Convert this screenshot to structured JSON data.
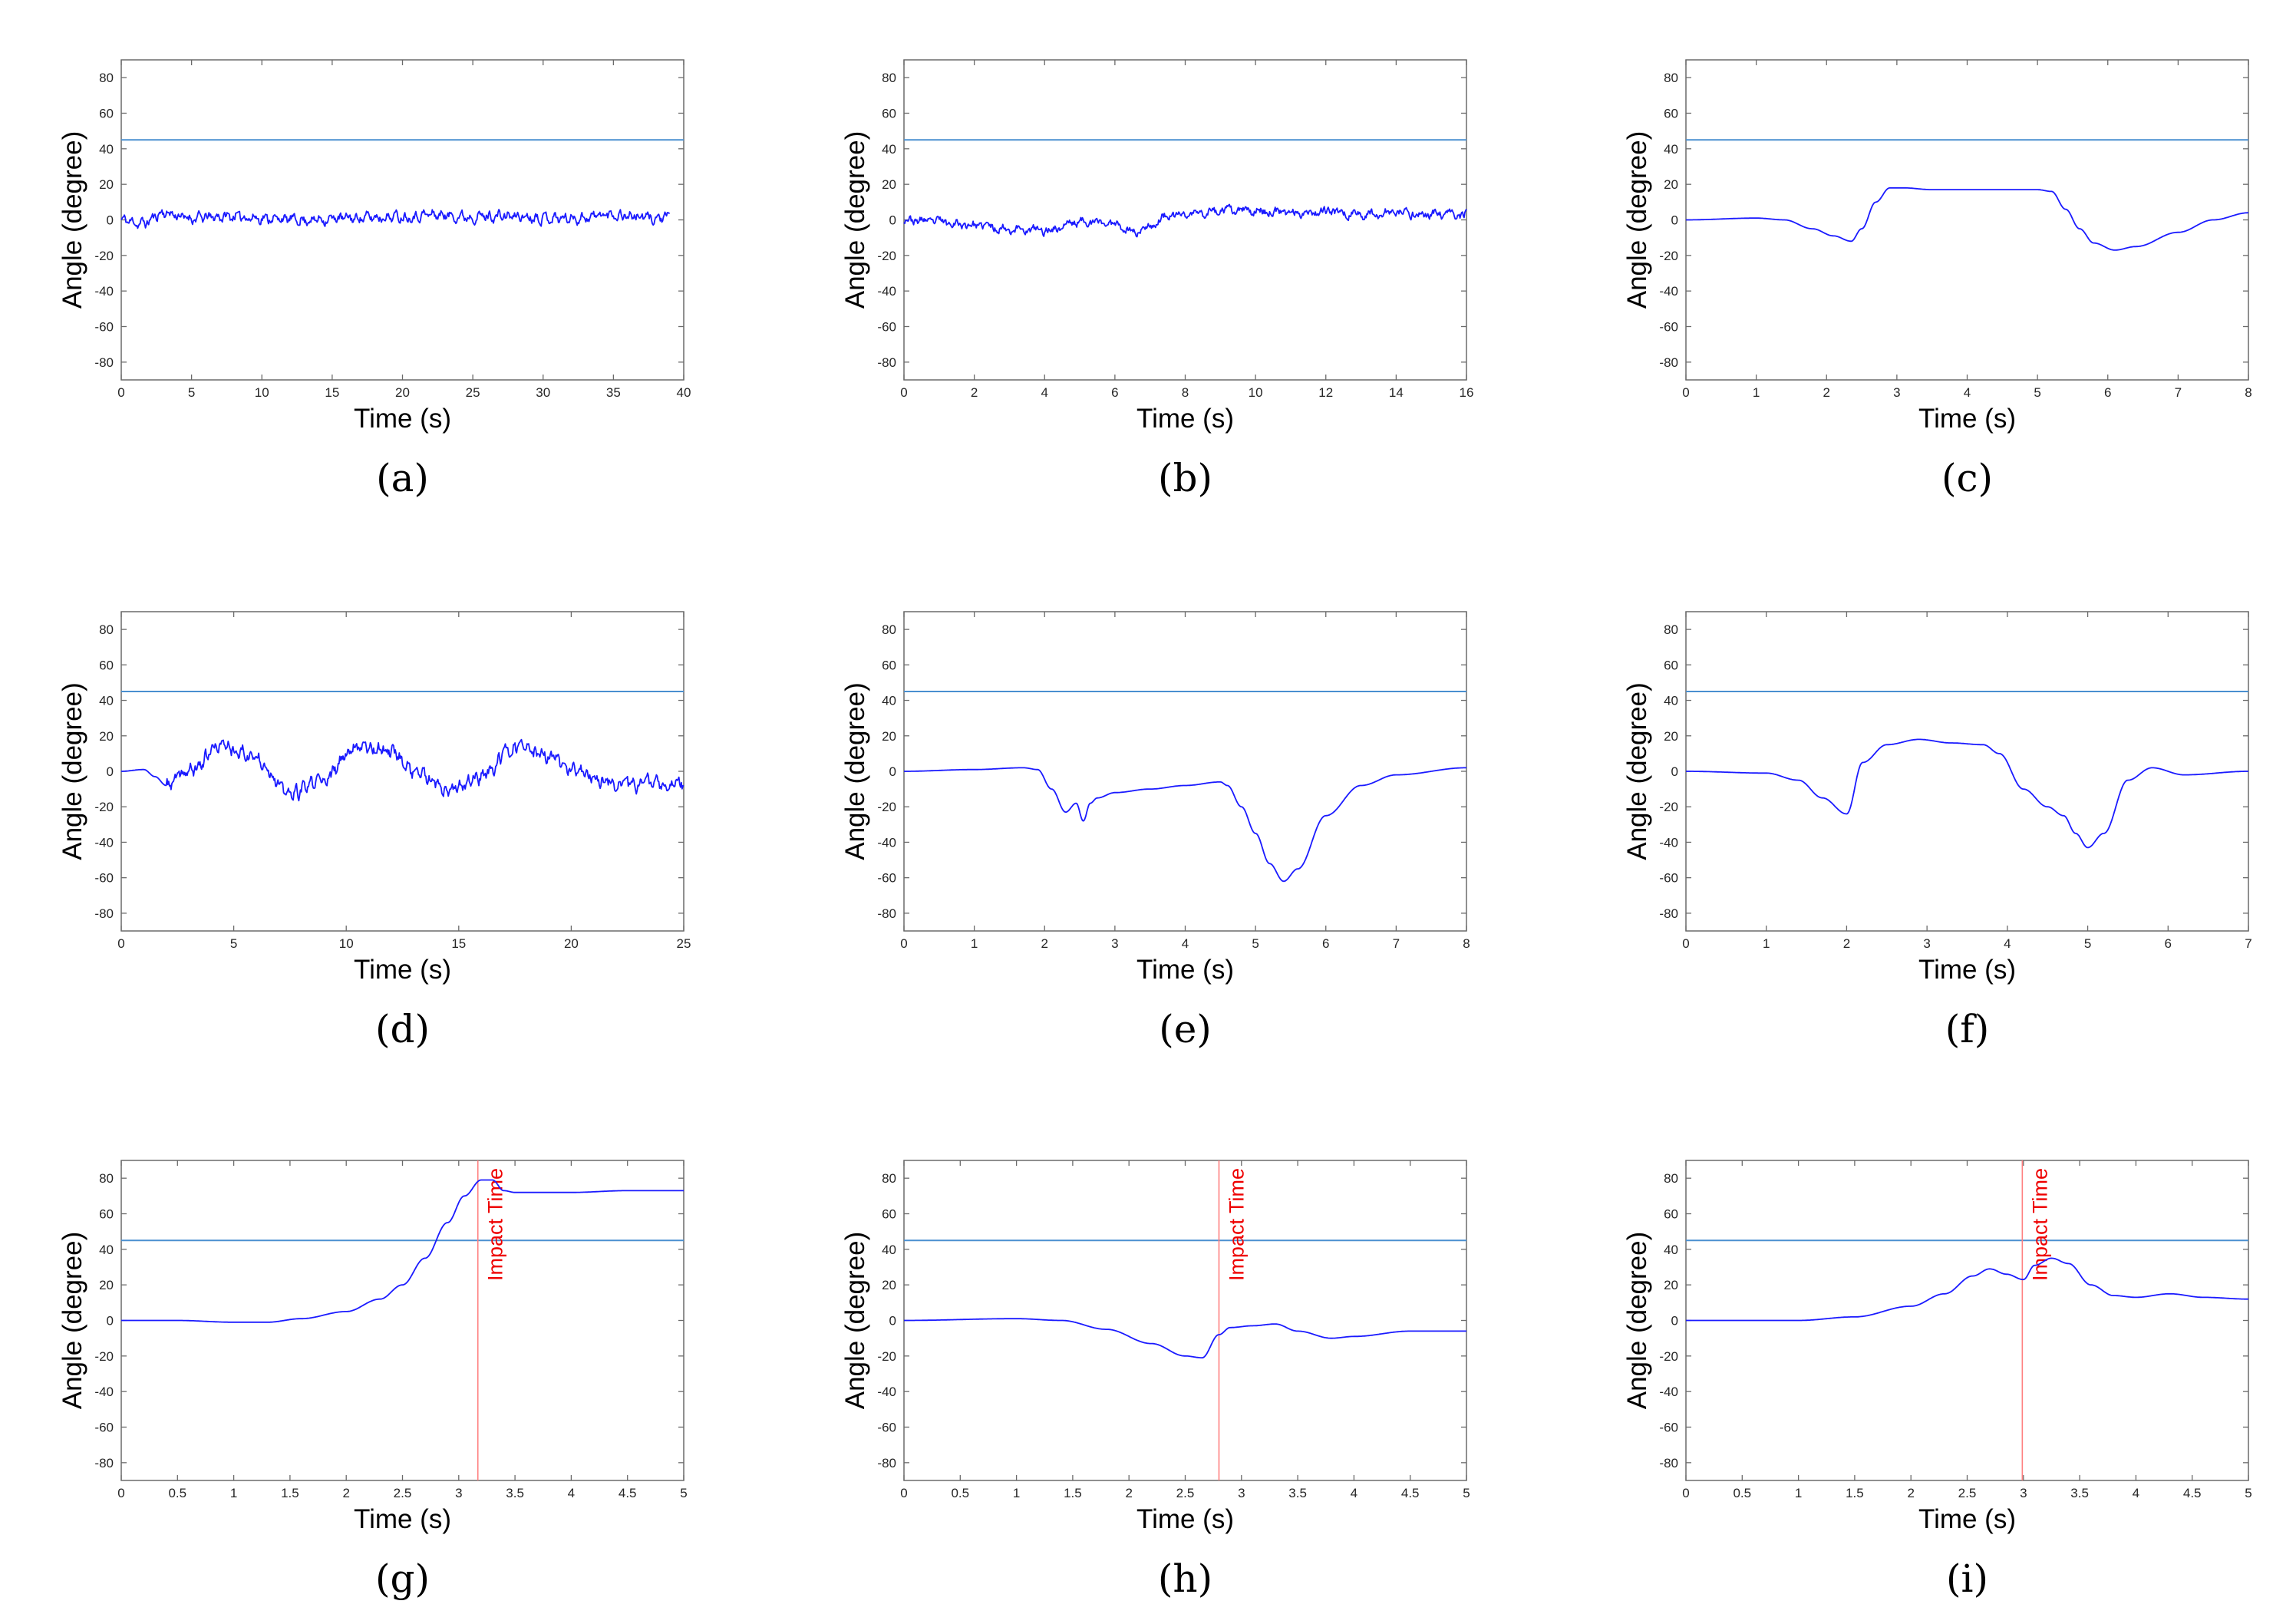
{
  "colors": {
    "signal": "#1a1aff",
    "threshold": "#4a8fd0",
    "impact": "#ff8080",
    "impact_text": "#ee0000",
    "axis": "#6a6a6a"
  },
  "chart_data": [
    {
      "id": "a",
      "type": "line",
      "caption": "(a)",
      "xlabel": "Time (s)",
      "ylabel": "Angle (degree)",
      "xlim": [
        0,
        40
      ],
      "ylim": [
        -90,
        90
      ],
      "xticks": [
        0,
        5,
        10,
        15,
        20,
        25,
        30,
        35,
        40
      ],
      "yticks": [
        -80,
        -60,
        -40,
        -20,
        0,
        20,
        40,
        60,
        80
      ],
      "threshold": 45,
      "impact_time": null,
      "impact_label": "",
      "series": [
        {
          "name": "angle",
          "generated": "noise",
          "seed": 11,
          "amp": 2.6,
          "freq": 1.5,
          "x": [
            0,
            1.5,
            3,
            5,
            8,
            10,
            13,
            16,
            20,
            22,
            25,
            28,
            32,
            35,
            38,
            39
          ],
          "y": [
            0,
            -2,
            4,
            1,
            2,
            1,
            0,
            1,
            2,
            3,
            2,
            2,
            1,
            3,
            1,
            1
          ]
        }
      ]
    },
    {
      "id": "b",
      "type": "line",
      "caption": "(b)",
      "xlabel": "Time (s)",
      "ylabel": "Angle (degree)",
      "xlim": [
        0,
        16
      ],
      "ylim": [
        -90,
        90
      ],
      "xticks": [
        0,
        2,
        4,
        6,
        8,
        10,
        12,
        14,
        16
      ],
      "yticks": [
        -80,
        -60,
        -40,
        -20,
        0,
        20,
        40,
        60,
        80
      ],
      "threshold": 45,
      "impact_time": null,
      "impact_label": "",
      "series": [
        {
          "name": "angle",
          "generated": "noise",
          "seed": 23,
          "amp": 2.2,
          "freq": 2.2,
          "x": [
            0,
            1,
            2,
            3,
            4,
            5,
            6,
            6.6,
            7,
            7.5,
            8,
            9,
            10,
            11,
            12,
            13,
            14,
            15,
            16
          ],
          "y": [
            0,
            -1,
            -3,
            -5,
            -6,
            -1,
            -2,
            -7,
            -3,
            2,
            3,
            5,
            5,
            4,
            5,
            3,
            4,
            3,
            3
          ]
        }
      ]
    },
    {
      "id": "c",
      "type": "line",
      "caption": "(c)",
      "xlabel": "Time (s)",
      "ylabel": "Angle (degree)",
      "xlim": [
        0,
        8
      ],
      "ylim": [
        -90,
        90
      ],
      "xticks": [
        0,
        1,
        2,
        3,
        4,
        5,
        6,
        7,
        8
      ],
      "yticks": [
        -80,
        -60,
        -40,
        -20,
        0,
        20,
        40,
        60,
        80
      ],
      "threshold": 45,
      "impact_time": null,
      "impact_label": "",
      "series": [
        {
          "name": "angle",
          "x": [
            0,
            1,
            1.4,
            1.8,
            2.1,
            2.35,
            2.5,
            2.7,
            2.9,
            3.1,
            3.5,
            4,
            4.5,
            5,
            5.2,
            5.4,
            5.6,
            5.8,
            6.1,
            6.4,
            7,
            7.5,
            8
          ],
          "y": [
            0,
            1,
            0,
            -5,
            -9,
            -12,
            -5,
            10,
            18,
            18,
            17,
            17,
            17,
            17,
            16,
            6,
            -5,
            -13,
            -17,
            -15,
            -7,
            0,
            4
          ]
        }
      ]
    },
    {
      "id": "d",
      "type": "line",
      "caption": "(d)",
      "xlabel": "Time (s)",
      "ylabel": "Angle (degree)",
      "xlim": [
        0,
        25
      ],
      "ylim": [
        -90,
        90
      ],
      "xticks": [
        0,
        5,
        10,
        15,
        20,
        25
      ],
      "yticks": [
        -80,
        -60,
        -40,
        -20,
        0,
        20,
        40,
        60,
        80
      ],
      "threshold": 45,
      "impact_time": null,
      "impact_label": "",
      "series": [
        {
          "name": "angle",
          "generated": "noise",
          "seed": 37,
          "amp": 3.5,
          "freq": 3,
          "noise_start": 2,
          "x": [
            0,
            1,
            1.5,
            2,
            3,
            4.5,
            6,
            7.5,
            9,
            10.5,
            12,
            13,
            14.5,
            16,
            17.5,
            19,
            20,
            21,
            22,
            25
          ],
          "y": [
            0,
            1,
            -3,
            -8,
            0,
            15,
            8,
            -13,
            -5,
            15,
            12,
            0,
            -12,
            -3,
            14,
            8,
            1,
            -4,
            -7,
            -7
          ]
        }
      ]
    },
    {
      "id": "e",
      "type": "line",
      "caption": "(e)",
      "xlabel": "Time (s)",
      "ylabel": "Angle (degree)",
      "xlim": [
        0,
        8
      ],
      "ylim": [
        -90,
        90
      ],
      "xticks": [
        0,
        1,
        2,
        3,
        4,
        5,
        6,
        7,
        8
      ],
      "yticks": [
        -80,
        -60,
        -40,
        -20,
        0,
        20,
        40,
        60,
        80
      ],
      "threshold": 45,
      "impact_time": null,
      "impact_label": "",
      "series": [
        {
          "name": "angle",
          "x": [
            0,
            1,
            1.7,
            1.9,
            2.1,
            2.3,
            2.45,
            2.55,
            2.65,
            2.75,
            3,
            3.5,
            4,
            4.5,
            4.6,
            4.8,
            5,
            5.2,
            5.4,
            5.6,
            6,
            6.5,
            7,
            8
          ],
          "y": [
            0,
            1,
            2,
            1,
            -10,
            -23,
            -18,
            -28,
            -18,
            -15,
            -12,
            -10,
            -8,
            -6,
            -8,
            -20,
            -35,
            -52,
            -62,
            -55,
            -25,
            -8,
            -2,
            2
          ]
        }
      ]
    },
    {
      "id": "f",
      "type": "line",
      "caption": "(f)",
      "xlabel": "Time (s)",
      "ylabel": "Angle (degree)",
      "xlim": [
        0,
        7
      ],
      "ylim": [
        -90,
        90
      ],
      "xticks": [
        0,
        1,
        2,
        3,
        4,
        5,
        6,
        7
      ],
      "yticks": [
        -80,
        -60,
        -40,
        -20,
        0,
        20,
        40,
        60,
        80
      ],
      "threshold": 45,
      "impact_time": null,
      "impact_label": "",
      "series": [
        {
          "name": "angle",
          "x": [
            0,
            1,
            1.4,
            1.7,
            2,
            2.2,
            2.5,
            2.9,
            3.3,
            3.7,
            3.9,
            4.2,
            4.5,
            4.7,
            4.85,
            5,
            5.2,
            5.5,
            5.8,
            6.2,
            7
          ],
          "y": [
            0,
            -1,
            -5,
            -15,
            -24,
            5,
            15,
            18,
            16,
            15,
            10,
            -10,
            -20,
            -25,
            -35,
            -43,
            -35,
            -5,
            2,
            -2,
            0
          ]
        }
      ]
    },
    {
      "id": "g",
      "type": "line",
      "caption": "(g)",
      "xlabel": "Time (s)",
      "ylabel": "Angle (degree)",
      "xlim": [
        0,
        5
      ],
      "ylim": [
        -90,
        90
      ],
      "xticks": [
        0,
        0.5,
        1,
        1.5,
        2,
        2.5,
        3,
        3.5,
        4,
        4.5,
        5
      ],
      "yticks": [
        -80,
        -60,
        -40,
        -20,
        0,
        20,
        40,
        60,
        80
      ],
      "threshold": 45,
      "impact_time": 3.17,
      "impact_label": "Impact Time",
      "series": [
        {
          "name": "angle",
          "x": [
            0,
            0.5,
            1,
            1.3,
            1.6,
            2,
            2.3,
            2.5,
            2.7,
            2.9,
            3.05,
            3.2,
            3.3,
            3.4,
            3.5,
            4,
            4.5,
            5
          ],
          "y": [
            0,
            0,
            -1,
            -1,
            1,
            5,
            12,
            20,
            35,
            55,
            70,
            79,
            79,
            73,
            72,
            72,
            73,
            73
          ]
        }
      ]
    },
    {
      "id": "h",
      "type": "line",
      "caption": "(h)",
      "xlabel": "Time (s)",
      "ylabel": "Angle (degree)",
      "xlim": [
        0,
        5
      ],
      "ylim": [
        -90,
        90
      ],
      "xticks": [
        0,
        0.5,
        1,
        1.5,
        2,
        2.5,
        3,
        3.5,
        4,
        4.5,
        5
      ],
      "yticks": [
        -80,
        -60,
        -40,
        -20,
        0,
        20,
        40,
        60,
        80
      ],
      "threshold": 45,
      "impact_time": 2.8,
      "impact_label": "Impact Time",
      "series": [
        {
          "name": "angle",
          "x": [
            0,
            1,
            1.4,
            1.8,
            2.2,
            2.5,
            2.65,
            2.8,
            2.9,
            3.1,
            3.3,
            3.5,
            3.8,
            4,
            4.5,
            5
          ],
          "y": [
            0,
            1,
            0,
            -5,
            -13,
            -20,
            -21,
            -8,
            -4,
            -3,
            -2,
            -6,
            -10,
            -9,
            -6,
            -6
          ]
        }
      ]
    },
    {
      "id": "i",
      "type": "line",
      "caption": "(i)",
      "xlabel": "Time (s)",
      "ylabel": "Angle (degree)",
      "xlim": [
        0,
        5
      ],
      "ylim": [
        -90,
        90
      ],
      "xticks": [
        0,
        0.5,
        1,
        1.5,
        2,
        2.5,
        3,
        3.5,
        4,
        4.5,
        5
      ],
      "yticks": [
        -80,
        -60,
        -40,
        -20,
        0,
        20,
        40,
        60,
        80
      ],
      "threshold": 45,
      "impact_time": 2.99,
      "impact_label": "Impact Time",
      "series": [
        {
          "name": "angle",
          "x": [
            0,
            1,
            1.5,
            2,
            2.3,
            2.55,
            2.7,
            2.85,
            3,
            3.1,
            3.25,
            3.4,
            3.6,
            3.8,
            4,
            4.3,
            4.6,
            5
          ],
          "y": [
            0,
            0,
            2,
            8,
            15,
            25,
            29,
            26,
            23,
            31,
            35,
            32,
            20,
            14,
            13,
            15,
            13,
            12
          ]
        }
      ]
    }
  ]
}
